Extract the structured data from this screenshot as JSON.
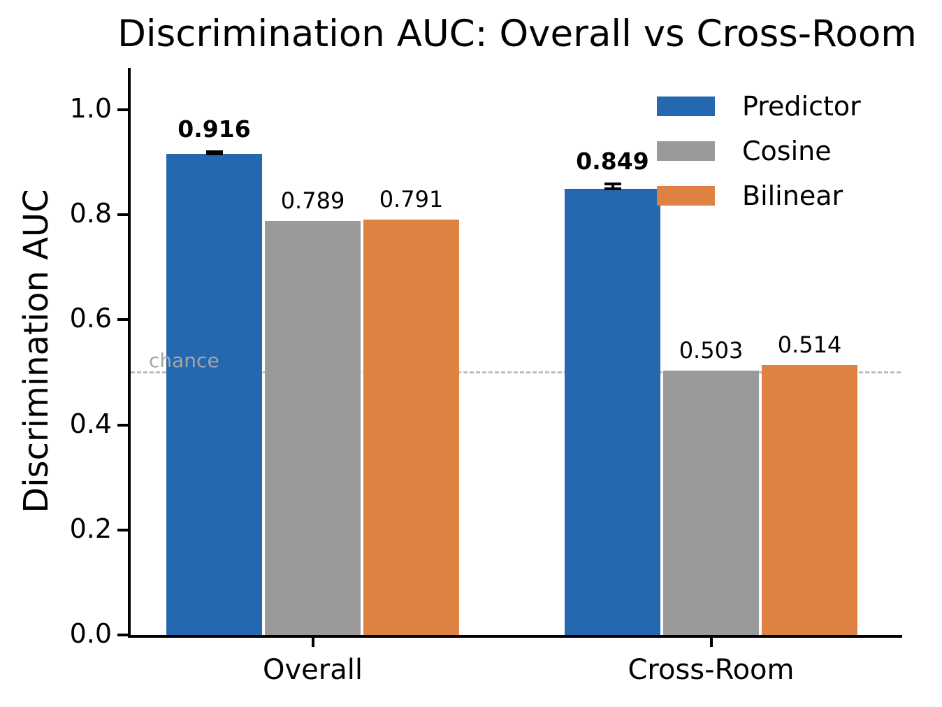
{
  "title": "Discrimination AUC: Overall vs Cross-Room",
  "chart_data": {
    "type": "bar",
    "title": "Discrimination AUC: Overall vs Cross-Room",
    "ylabel": "Discrimination AUC",
    "xlabel": "",
    "categories": [
      "Overall",
      "Cross-Room"
    ],
    "series": [
      {
        "name": "Predictor",
        "color": "#2469b0",
        "values": [
          0.916,
          0.849
        ],
        "value_labels": [
          "0.916",
          "0.849"
        ],
        "errors": [
          0.004,
          0.01
        ],
        "emphasize_labels": true
      },
      {
        "name": "Cosine",
        "color": "#9a9a9a",
        "values": [
          0.789,
          0.503
        ],
        "value_labels": [
          "0.789",
          "0.503"
        ],
        "errors": null,
        "emphasize_labels": false
      },
      {
        "name": "Bilinear",
        "color": "#de8243",
        "values": [
          0.791,
          0.514
        ],
        "value_labels": [
          "0.791",
          "0.514"
        ],
        "errors": null,
        "emphasize_labels": false
      }
    ],
    "ylim": [
      0,
      1.08
    ],
    "yticks": [
      0.0,
      0.2,
      0.4,
      0.6,
      0.8,
      1.0
    ],
    "ytick_labels": [
      "0.0",
      "0.2",
      "0.4",
      "0.6",
      "0.8",
      "1.0"
    ],
    "grid": false,
    "legend_position": "upper right",
    "reference_line": {
      "value": 0.5,
      "label": "chance",
      "line_color": "#bdbdbd",
      "label_color": "#a6a6a6",
      "style": "dashed"
    }
  },
  "colors": {
    "background": "#ffffff",
    "text": "#000000",
    "error_bar": "#000000"
  }
}
